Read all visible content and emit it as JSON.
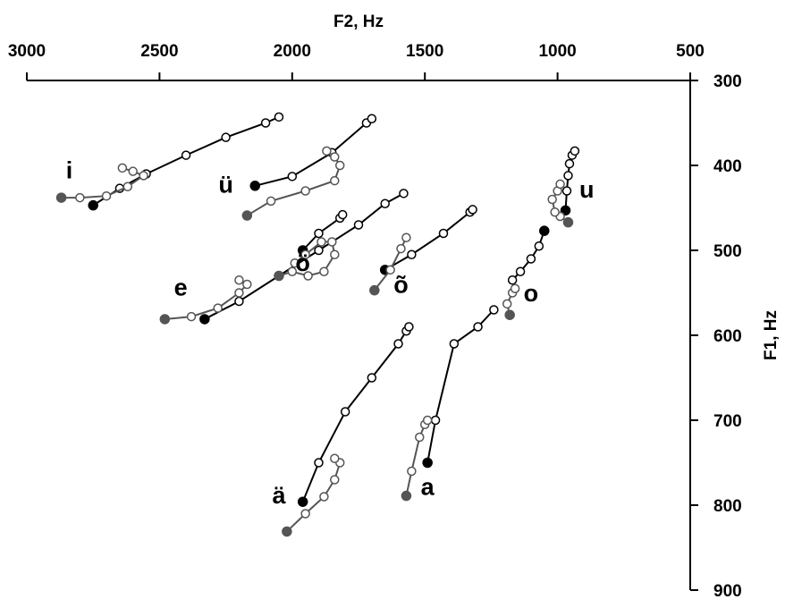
{
  "chart_data": {
    "type": "scatter",
    "title": "",
    "xlabel": "F2, Hz",
    "ylabel": "F1, Hz",
    "x_axis": {
      "position": "top",
      "reversed": true,
      "xlim": [
        3000,
        500
      ],
      "ticks": [
        3000,
        2500,
        2000,
        1500,
        1000,
        500
      ]
    },
    "y_axis": {
      "position": "right",
      "reversed": true,
      "ylim": [
        300,
        900
      ],
      "ticks": [
        300,
        400,
        500,
        600,
        700,
        800,
        900
      ]
    },
    "grid": false,
    "legend": "none",
    "colors": {
      "primary": "#000000",
      "secondary": "#555555",
      "open_marker": "#ffffff"
    },
    "series": [
      {
        "name": "i",
        "style": "black",
        "x": [
          2750,
          2650,
          2550,
          2400,
          2250,
          2100,
          2050
        ],
        "y": [
          447,
          427,
          410,
          388,
          367,
          350,
          343
        ]
      },
      {
        "name": "i",
        "style": "gray",
        "x": [
          2870,
          2800,
          2700,
          2620,
          2560,
          2600,
          2640
        ],
        "y": [
          438,
          438,
          436,
          425,
          412,
          407,
          403
        ]
      },
      {
        "name": "ü",
        "style": "black",
        "x": [
          2140,
          2000,
          1850,
          1720,
          1700
        ],
        "y": [
          424,
          413,
          385,
          350,
          345
        ]
      },
      {
        "name": "ü",
        "style": "gray",
        "x": [
          2170,
          2080,
          1950,
          1840,
          1820,
          1840,
          1870
        ],
        "y": [
          459,
          442,
          430,
          418,
          400,
          390,
          383
        ]
      },
      {
        "name": "e",
        "style": "black",
        "x": [
          2330,
          2200,
          2050,
          1900,
          1750,
          1650,
          1580
        ],
        "y": [
          581,
          560,
          530,
          500,
          470,
          445,
          433
        ]
      },
      {
        "name": "e",
        "style": "gray",
        "x": [
          2480,
          2380,
          2280,
          2200,
          2170,
          2200
        ],
        "y": [
          581,
          578,
          568,
          550,
          540,
          535
        ]
      },
      {
        "name": "õ",
        "style": "black",
        "x": [
          1650,
          1550,
          1430,
          1330,
          1320
        ],
        "y": [
          523,
          505,
          480,
          455,
          452
        ]
      },
      {
        "name": "õ",
        "style": "gray",
        "x": [
          1690,
          1630,
          1590,
          1570
        ],
        "y": [
          547,
          523,
          498,
          485
        ]
      },
      {
        "name": "ö",
        "style": "black",
        "x": [
          1960,
          1900,
          1820,
          1810
        ],
        "y": [
          500,
          480,
          462,
          458
        ]
      },
      {
        "name": "ö",
        "style": "gray",
        "x": [
          2050,
          2000,
          1940,
          1880,
          1840,
          1850,
          1890,
          1950,
          1990
        ],
        "y": [
          530,
          525,
          530,
          525,
          505,
          490,
          490,
          505,
          515
        ]
      },
      {
        "name": "u",
        "style": "black",
        "x": [
          970,
          965,
          960,
          955,
          945,
          935
        ],
        "y": [
          453,
          430,
          412,
          398,
          388,
          383
        ]
      },
      {
        "name": "u",
        "style": "gray",
        "x": [
          960,
          990,
          1010,
          1020,
          1000,
          990
        ],
        "y": [
          467,
          460,
          455,
          440,
          430,
          422
        ]
      },
      {
        "name": "o",
        "style": "black",
        "x": [
          1050,
          1070,
          1100,
          1140,
          1170
        ],
        "y": [
          477,
          495,
          510,
          525,
          535
        ]
      },
      {
        "name": "o",
        "style": "gray",
        "x": [
          1180,
          1190,
          1170,
          1160
        ],
        "y": [
          576,
          563,
          550,
          545
        ]
      },
      {
        "name": "a",
        "style": "black",
        "x": [
          1490,
          1460,
          1390,
          1300,
          1240
        ],
        "y": [
          750,
          700,
          610,
          590,
          570
        ]
      },
      {
        "name": "a",
        "style": "gray",
        "x": [
          1570,
          1550,
          1520,
          1500,
          1490
        ],
        "y": [
          789,
          760,
          720,
          705,
          700
        ]
      },
      {
        "name": "ä",
        "style": "black",
        "x": [
          1960,
          1900,
          1800,
          1700,
          1600,
          1570,
          1560
        ],
        "y": [
          796,
          750,
          690,
          650,
          610,
          595,
          590
        ]
      },
      {
        "name": "ä",
        "style": "gray",
        "x": [
          2020,
          1950,
          1880,
          1840,
          1820,
          1840
        ],
        "y": [
          831,
          810,
          790,
          770,
          750,
          745
        ]
      }
    ],
    "vowel_labels": [
      {
        "text": "i",
        "x": 2840,
        "y": 415
      },
      {
        "text": "ü",
        "x": 2250,
        "y": 432
      },
      {
        "text": "e",
        "x": 2420,
        "y": 553
      },
      {
        "text": "ö",
        "x": 1960,
        "y": 524
      },
      {
        "text": "õ",
        "x": 1590,
        "y": 550
      },
      {
        "text": "u",
        "x": 890,
        "y": 438
      },
      {
        "text": "o",
        "x": 1100,
        "y": 560
      },
      {
        "text": "a",
        "x": 1490,
        "y": 788
      },
      {
        "text": "ä",
        "x": 2050,
        "y": 798
      }
    ]
  }
}
